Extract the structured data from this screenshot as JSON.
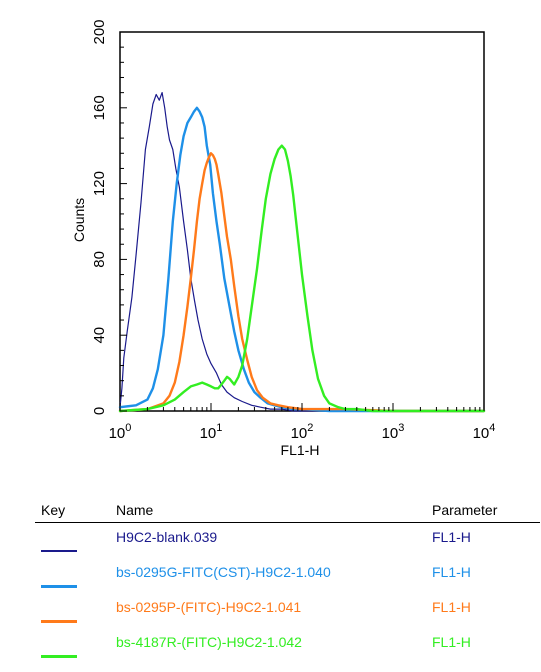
{
  "chart_data": {
    "type": "line",
    "title": "",
    "xlabel": "FL1-H",
    "ylabel": "Counts",
    "xscale": "log",
    "xlim": [
      1,
      10000
    ],
    "ylim": [
      0,
      200
    ],
    "grid": false,
    "x_ticks": [
      {
        "base": "10",
        "exp": "0",
        "value": 1
      },
      {
        "base": "10",
        "exp": "1",
        "value": 10
      },
      {
        "base": "10",
        "exp": "2",
        "value": 100
      },
      {
        "base": "10",
        "exp": "3",
        "value": 1000
      },
      {
        "base": "10",
        "exp": "4",
        "value": 10000
      }
    ],
    "y_ticks": [
      "0",
      "40",
      "80",
      "120",
      "160",
      "200"
    ],
    "series": [
      {
        "name": "H9C2-blank.039",
        "color": "#1a1a8c",
        "stroke": 1.2,
        "x": [
          1,
          1.05,
          1.1,
          1.2,
          1.35,
          1.5,
          1.7,
          1.9,
          2.1,
          2.3,
          2.5,
          2.7,
          2.9,
          3.1,
          3.3,
          3.5,
          3.8,
          4.1,
          4.5,
          5,
          5.5,
          6,
          6.6,
          7.2,
          8,
          9,
          10,
          11.5,
          13,
          15,
          18,
          22,
          28,
          35,
          45,
          60,
          80,
          100,
          200,
          1000,
          10000
        ],
        "y": [
          2,
          12,
          28,
          42,
          60,
          82,
          110,
          138,
          150,
          162,
          167,
          164,
          168,
          160,
          150,
          143,
          138,
          128,
          118,
          100,
          85,
          70,
          58,
          48,
          38,
          30,
          25,
          20,
          14,
          10,
          7,
          5,
          3,
          2,
          1,
          1,
          0,
          0,
          0,
          0,
          0
        ]
      },
      {
        "name": "bs-0295G-FITC(CST)-H9C2-1.040",
        "color": "#1e90e8",
        "stroke": 2.4,
        "x": [
          1,
          1.5,
          2,
          2.3,
          2.6,
          3,
          3.4,
          3.8,
          4.2,
          4.6,
          5,
          5.5,
          6,
          6.5,
          7,
          7.5,
          8,
          8.5,
          9,
          9.8,
          10.5,
          11.5,
          12.5,
          14,
          16,
          18,
          20,
          23,
          26,
          30,
          35,
          42,
          50,
          60,
          80,
          100,
          200,
          1000,
          10000
        ],
        "y": [
          2,
          3,
          6,
          12,
          22,
          40,
          70,
          100,
          120,
          135,
          145,
          152,
          155,
          158,
          160,
          158,
          155,
          150,
          140,
          130,
          115,
          100,
          88,
          70,
          55,
          42,
          32,
          22,
          15,
          10,
          7,
          4,
          3,
          2,
          1,
          1,
          0,
          0,
          0
        ]
      },
      {
        "name": "bs-0295P-(FITC)-H9C2-1.041",
        "color": "#ff7a1a",
        "stroke": 2.4,
        "x": [
          1,
          2,
          3,
          3.5,
          4,
          4.5,
          5,
          5.5,
          6,
          6.5,
          7,
          7.5,
          8,
          8.5,
          9,
          9.5,
          10,
          10.5,
          11,
          11.5,
          12,
          13,
          14,
          15,
          16.5,
          18,
          20,
          22,
          25,
          28,
          32,
          37,
          45,
          55,
          70,
          100,
          300,
          1000,
          10000
        ],
        "y": [
          0,
          1,
          4,
          8,
          15,
          26,
          40,
          55,
          70,
          85,
          100,
          112,
          120,
          127,
          131,
          134,
          136,
          135,
          133,
          130,
          125,
          115,
          103,
          92,
          80,
          66,
          50,
          38,
          27,
          18,
          11,
          7,
          4,
          3,
          2,
          1,
          1,
          0,
          0
        ]
      },
      {
        "name": "bs-4187R-(FITC)-H9C2-1.042",
        "color": "#33ee22",
        "stroke": 2.4,
        "x": [
          1,
          2,
          3,
          4,
          5,
          6,
          7,
          8,
          9,
          10,
          11,
          12,
          13,
          14,
          15,
          16,
          18,
          20,
          22,
          25,
          28,
          32,
          36,
          40,
          45,
          50,
          55,
          60,
          65,
          70,
          75,
          80,
          90,
          100,
          115,
          130,
          150,
          175,
          200,
          250,
          300,
          400,
          600,
          1000,
          10000
        ],
        "y": [
          0,
          1,
          3,
          6,
          10,
          13,
          14,
          15,
          14,
          13,
          12,
          12,
          14,
          16,
          18,
          17,
          14,
          18,
          24,
          38,
          55,
          75,
          95,
          112,
          125,
          133,
          138,
          140,
          138,
          132,
          124,
          114,
          92,
          72,
          50,
          32,
          17,
          8,
          4,
          2,
          1,
          1,
          0,
          0,
          0
        ]
      }
    ]
  },
  "legend": {
    "headers": {
      "key": "Key",
      "name": "Name",
      "parameter": "Parameter"
    },
    "rows": [
      {
        "name": "H9C2-blank.039",
        "parameter": "FL1-H"
      },
      {
        "name": "bs-0295G-FITC(CST)-H9C2-1.040",
        "parameter": "FL1-H"
      },
      {
        "name": "bs-0295P-(FITC)-H9C2-1.041",
        "parameter": "FL1-H"
      },
      {
        "name": "bs-4187R-(FITC)-H9C2-1.042",
        "parameter": "FL1-H"
      }
    ]
  }
}
